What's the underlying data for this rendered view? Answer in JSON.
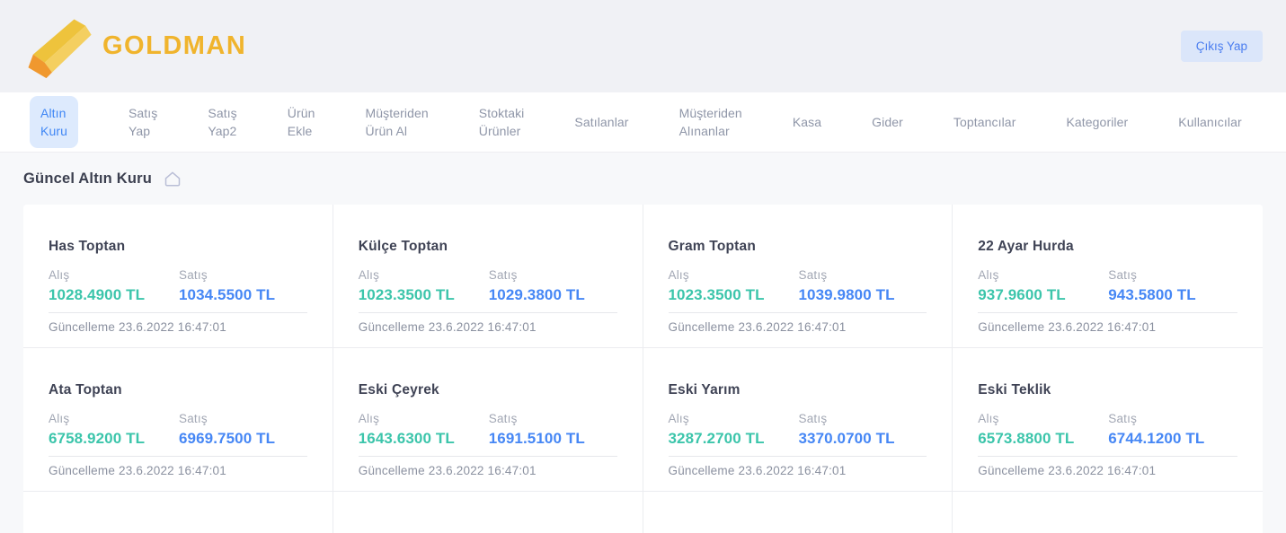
{
  "brand": {
    "name": "GOLDMAN"
  },
  "header": {
    "logout_label": "Çıkış Yap"
  },
  "nav": {
    "items": [
      {
        "label": "Altın Kuru",
        "active": true
      },
      {
        "label": "Satış Yap",
        "active": false
      },
      {
        "label": "Satış Yap2",
        "active": false
      },
      {
        "label": "Ürün Ekle",
        "active": false
      },
      {
        "label": "Müşteriden Ürün Al",
        "active": false
      },
      {
        "label": "Stoktaki Ürünler",
        "active": false
      },
      {
        "label": "Satılanlar",
        "active": false
      },
      {
        "label": "Müşteriden Alınanlar",
        "active": false
      },
      {
        "label": "Kasa",
        "active": false
      },
      {
        "label": "Gider",
        "active": false
      },
      {
        "label": "Toptancılar",
        "active": false
      },
      {
        "label": "Kategoriler",
        "active": false
      },
      {
        "label": "Kullanıcılar",
        "active": false
      }
    ]
  },
  "page": {
    "title": "Güncel Altın Kuru"
  },
  "rates": {
    "buy_label": "Alış",
    "sell_label": "Satış",
    "updated_prefix": "Güncelleme",
    "cards": [
      {
        "name": "Has Toptan",
        "buy": "1028.4900 TL",
        "sell": "1034.5500 TL",
        "updated": "23.6.2022 16:47:01"
      },
      {
        "name": "Külçe Toptan",
        "buy": "1023.3500 TL",
        "sell": "1029.3800 TL",
        "updated": "23.6.2022 16:47:01"
      },
      {
        "name": "Gram Toptan",
        "buy": "1023.3500 TL",
        "sell": "1039.9800 TL",
        "updated": "23.6.2022 16:47:01"
      },
      {
        "name": "22 Ayar Hurda",
        "buy": "937.9600 TL",
        "sell": "943.5800 TL",
        "updated": "23.6.2022 16:47:01"
      },
      {
        "name": "Ata Toptan",
        "buy": "6758.9200 TL",
        "sell": "6969.7500 TL",
        "updated": "23.6.2022 16:47:01"
      },
      {
        "name": "Eski Çeyrek",
        "buy": "1643.6300 TL",
        "sell": "1691.5100 TL",
        "updated": "23.6.2022 16:47:01"
      },
      {
        "name": "Eski Yarım",
        "buy": "3287.2700 TL",
        "sell": "3370.0700 TL",
        "updated": "23.6.2022 16:47:01"
      },
      {
        "name": "Eski Teklik",
        "buy": "6573.8800 TL",
        "sell": "6744.1200 TL",
        "updated": "23.6.2022 16:47:01"
      }
    ]
  },
  "colors": {
    "brand_gold": "#F0B42D",
    "buy_green": "#3CC5AB",
    "sell_blue": "#4687F5",
    "nav_active_bg": "#DDEAFD",
    "nav_active_text": "#3F86F5",
    "logout_bg": "#DBE6FA",
    "logout_text": "#4A7DF0"
  }
}
